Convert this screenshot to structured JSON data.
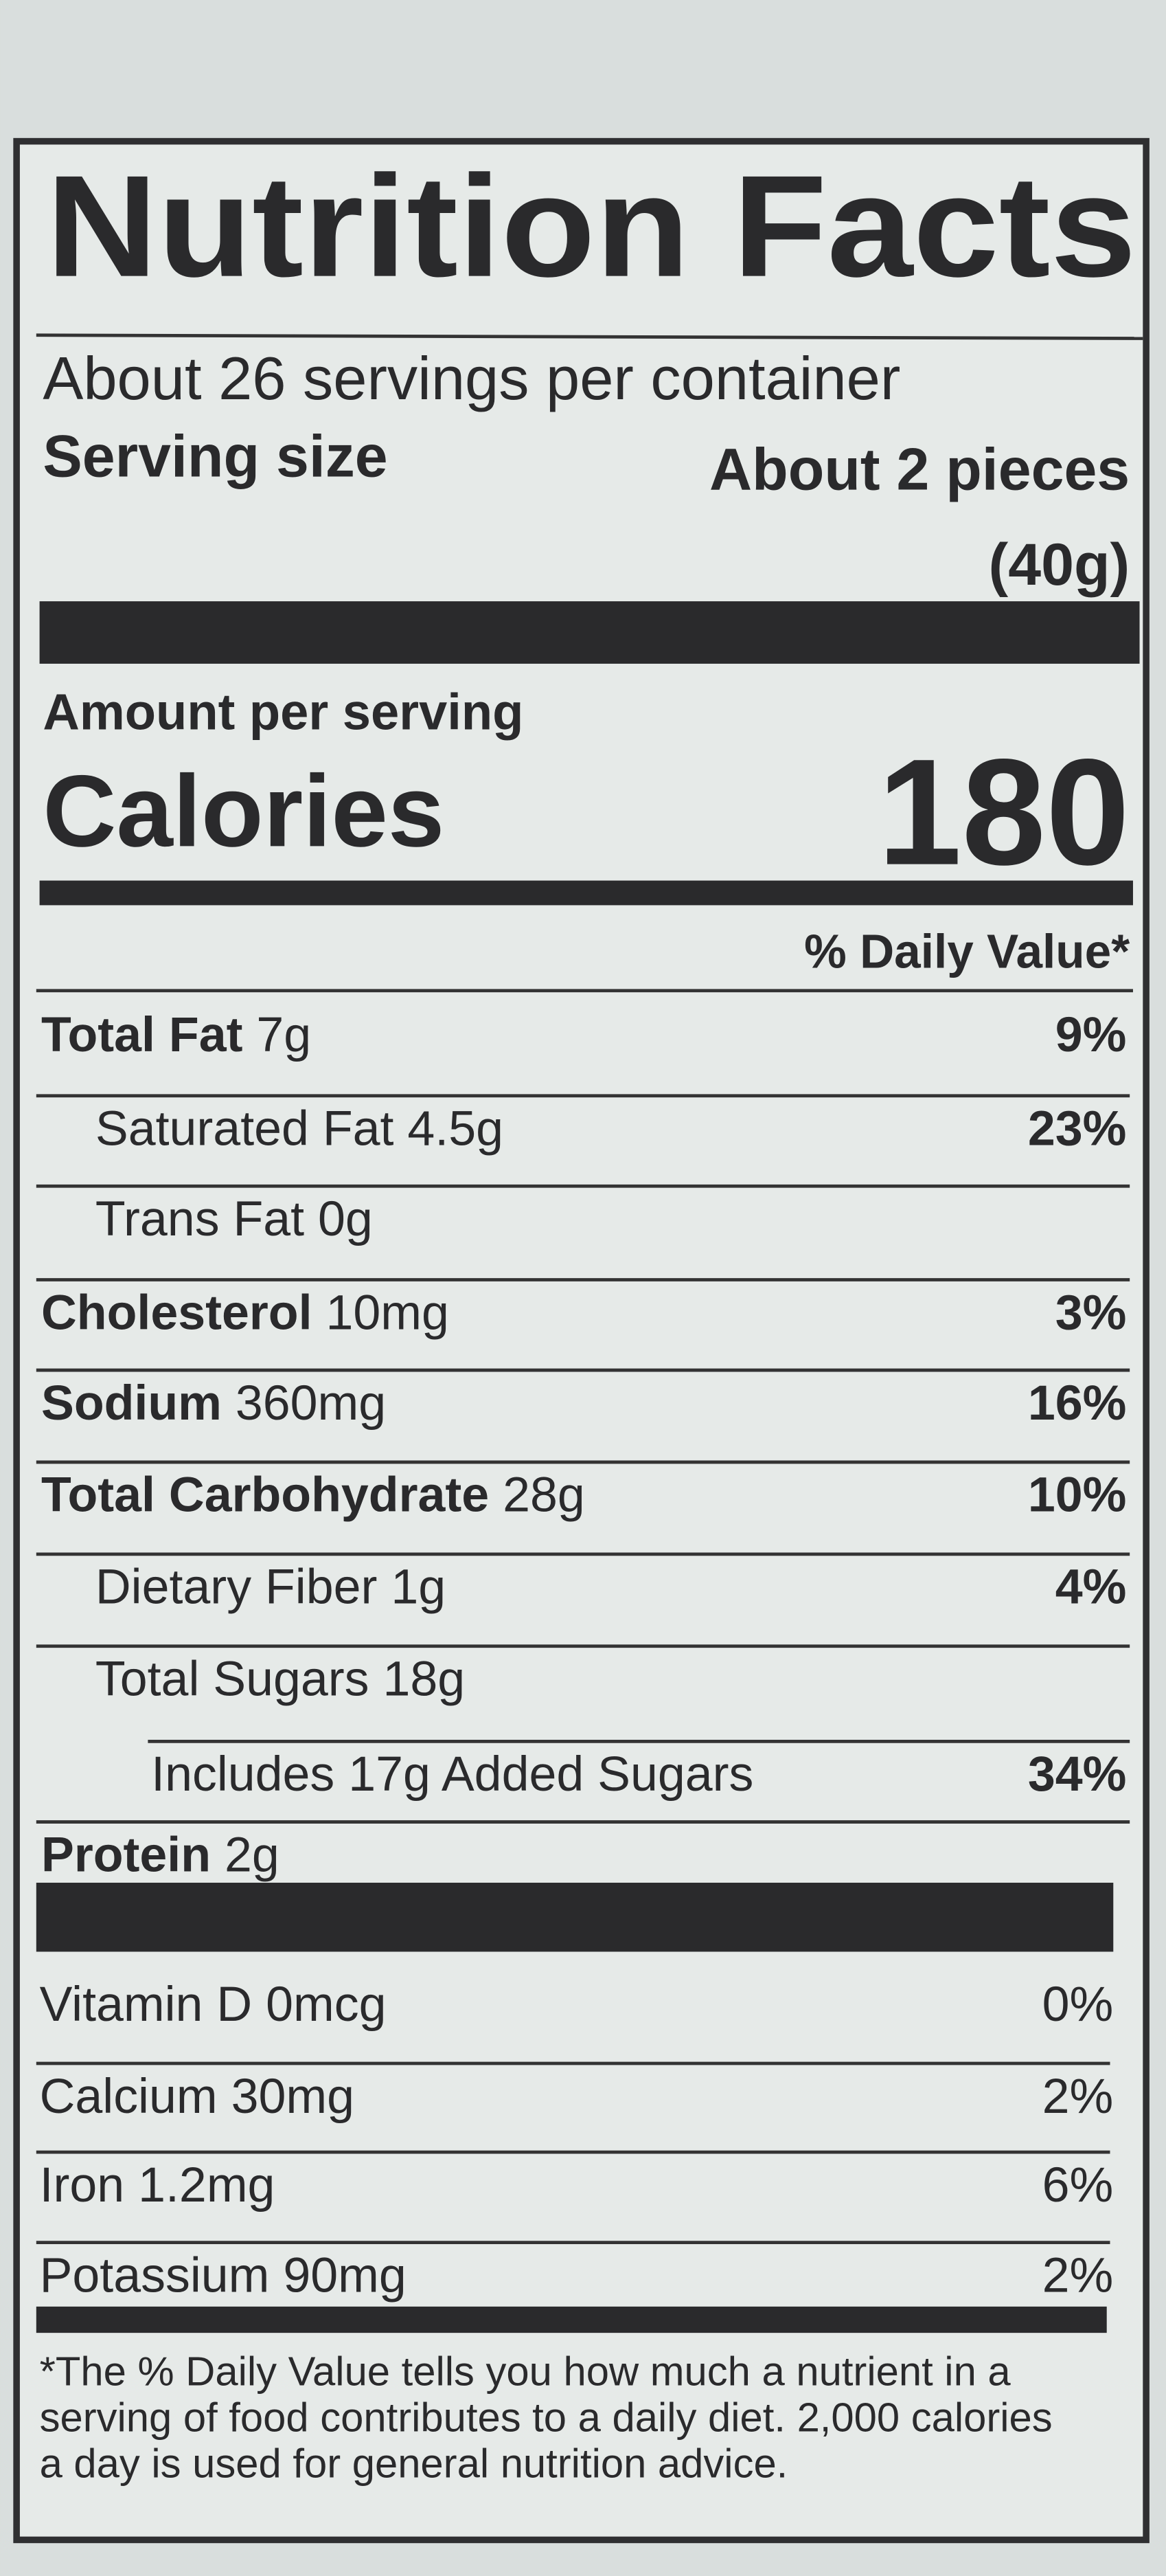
{
  "label": {
    "title": "Nutrition Facts",
    "servings": "About 26 servings per container",
    "serving_size_label": "Serving size",
    "serving_size_value": [
      "About 2 pieces",
      "(40g)"
    ],
    "amount_per_serving": "Amount per serving",
    "calories_label": "Calories",
    "calories_value": "180",
    "dv_header": "% Daily Value*",
    "nutrients": [
      {
        "name": "Total Fat",
        "amount": "7g",
        "dv": "9%",
        "bold": true,
        "indent": 0
      },
      {
        "name": "Saturated Fat",
        "amount": "4.5g",
        "dv": "23%",
        "bold": false,
        "indent": 1
      },
      {
        "name": "Trans Fat",
        "amount": "0g",
        "bold": false,
        "indent": 1
      },
      {
        "name": "Cholesterol",
        "amount": "10mg",
        "dv": "3%",
        "bold": true,
        "indent": 0
      },
      {
        "name": "Sodium",
        "amount": "360mg",
        "dv": "16%",
        "bold": true,
        "indent": 0
      },
      {
        "name": "Total Carbohydrate",
        "amount": "28g",
        "dv": "10%",
        "bold": true,
        "indent": 0
      },
      {
        "name": "Dietary Fiber",
        "amount": "1g",
        "dv": "4%",
        "bold": false,
        "indent": 1
      },
      {
        "name": "Total Sugars",
        "amount": "18g",
        "bold": false,
        "indent": 1
      },
      {
        "name": "Includes 17g Added Sugars",
        "dv": "34%",
        "bold": false,
        "indent": 2
      },
      {
        "name": "Protein",
        "amount": "2g",
        "bold": true,
        "indent": 0
      }
    ],
    "vitamins": [
      {
        "name": "Vitamin D",
        "amount": "0mcg",
        "dv": "0%"
      },
      {
        "name": "Calcium",
        "amount": "30mg",
        "dv": "2%"
      },
      {
        "name": "Iron",
        "amount": "1.2mg",
        "dv": "6%"
      },
      {
        "name": "Potassium",
        "amount": "90mg",
        "dv": "2%"
      }
    ],
    "footnote": [
      "*The % Daily Value tells you how much a nutrient in a",
      "serving of food contributes to a daily diet. 2,000 calories",
      "a day is used for general nutrition advice."
    ]
  }
}
